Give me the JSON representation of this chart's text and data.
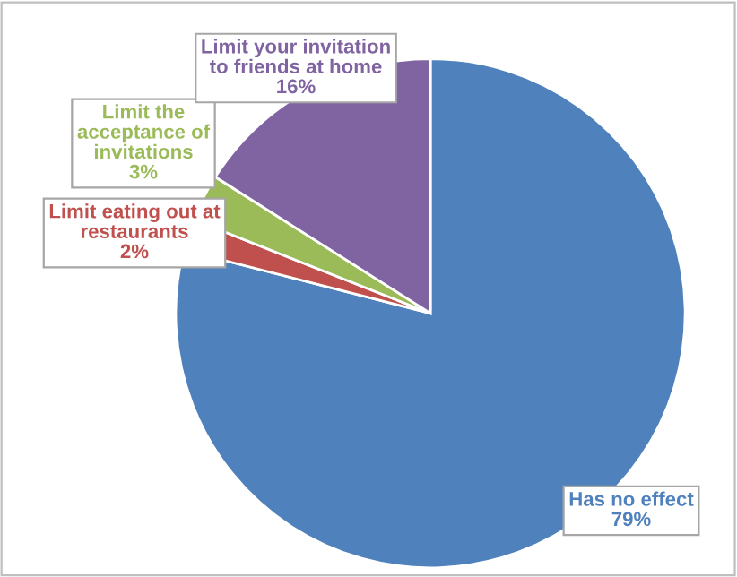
{
  "chart_data": {
    "type": "pie",
    "categories": [
      "Has no effect",
      "Limit eating out at restaurants",
      "Limit the acceptance of invitations",
      "Limit your invitation to friends at home"
    ],
    "values": [
      79,
      2,
      3,
      16
    ],
    "value_labels": [
      "79%",
      "2%",
      "3%",
      "16%"
    ],
    "colors": [
      "#4f81bd",
      "#c0504d",
      "#9bbb59",
      "#8064a2"
    ],
    "legend": false
  }
}
